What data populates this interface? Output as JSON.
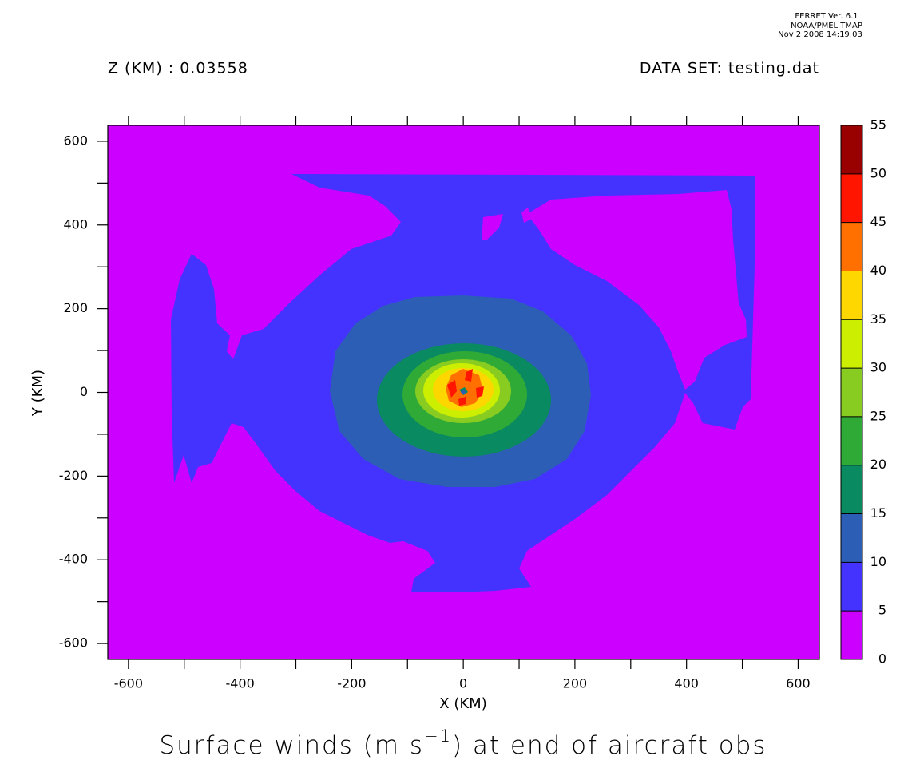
{
  "chart_data": {
    "type": "contour",
    "header": [
      "FERRET Ver. 6.1",
      "NOAA/PMEL TMAP",
      "Nov  2 2008 14:19:03"
    ],
    "subtitle_left": "Z (KM) : 0.03558",
    "subtitle_right": "DATA SET: testing.dat",
    "title": [
      "Surface winds (m s",
      {
        "sup": "−1"
      },
      ") at end of aircraft obs"
    ],
    "xlabel": "X (KM)",
    "ylabel": "Y (KM)",
    "xlim": [
      -637,
      638
    ],
    "ylim": [
      -638,
      638
    ],
    "xticks": [
      -600,
      -400,
      -200,
      0,
      200,
      400,
      600
    ],
    "yticks": [
      -600,
      -400,
      -200,
      0,
      200,
      400,
      600
    ],
    "levels": [
      0,
      5,
      10,
      15,
      20,
      25,
      30,
      35,
      40,
      45,
      50,
      55
    ],
    "colors": [
      "#cc00ff",
      "#4433ff",
      "#2c5eb6",
      "#0a8a60",
      "#30aa36",
      "#88cc22",
      "#ccee00",
      "#ffd700",
      "#ff7000",
      "#ff1500",
      "#990000"
    ]
  }
}
